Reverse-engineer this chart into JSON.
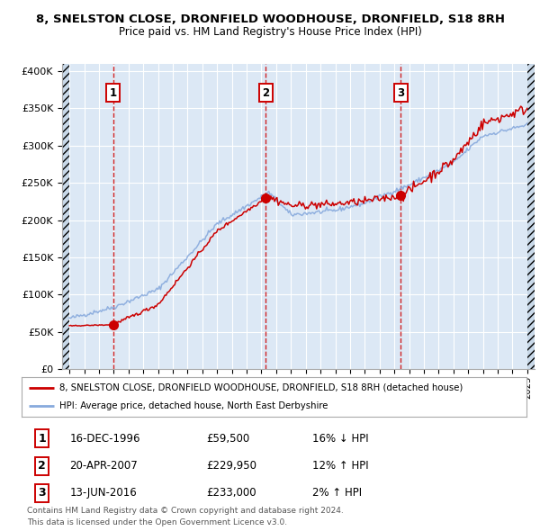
{
  "title1": "8, SNELSTON CLOSE, DRONFIELD WOODHOUSE, DRONFIELD, S18 8RH",
  "title2": "Price paid vs. HM Land Registry's House Price Index (HPI)",
  "xlim_start": 1993.5,
  "xlim_end": 2025.5,
  "ylim": [
    0,
    410000
  ],
  "yticks": [
    0,
    50000,
    100000,
    150000,
    200000,
    250000,
    300000,
    350000,
    400000
  ],
  "ytick_labels": [
    "£0",
    "£50K",
    "£100K",
    "£150K",
    "£200K",
    "£250K",
    "£300K",
    "£350K",
    "£400K"
  ],
  "sale_dates": [
    1996.96,
    2007.3,
    2016.44
  ],
  "sale_prices": [
    59500,
    229950,
    233000
  ],
  "sale_labels": [
    "1",
    "2",
    "3"
  ],
  "vline_color": "#cc0000",
  "sale_marker_color": "#cc0000",
  "hpi_color": "#88aadd",
  "sold_color": "#cc0000",
  "plot_bg": "#dce8f5",
  "legend_line1": "8, SNELSTON CLOSE, DRONFIELD WOODHOUSE, DRONFIELD, S18 8RH (detached house)",
  "legend_line2": "HPI: Average price, detached house, North East Derbyshire",
  "table_rows": [
    [
      "1",
      "16-DEC-1996",
      "£59,500",
      "16% ↓ HPI"
    ],
    [
      "2",
      "20-APR-2007",
      "£229,950",
      "12% ↑ HPI"
    ],
    [
      "3",
      "13-JUN-2016",
      "£233,000",
      "2% ↑ HPI"
    ]
  ],
  "footer1": "Contains HM Land Registry data © Crown copyright and database right 2024.",
  "footer2": "This data is licensed under the Open Government Licence v3.0.",
  "bg_color": "#ffffff",
  "grid_color": "#ffffff",
  "hatch_region_color": "#c8d8e8"
}
